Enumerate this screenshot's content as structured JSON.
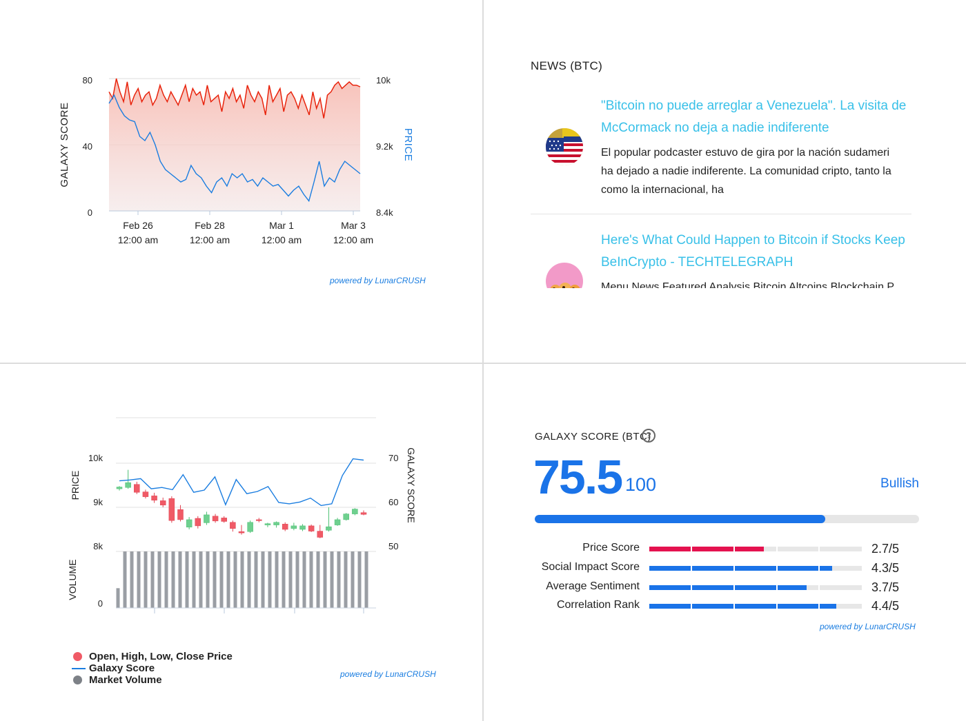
{
  "colors": {
    "galaxy_red": "#e8230c",
    "price_blue": "#1a7de0",
    "news_title": "#38c0e8",
    "score_blue": "#1a73e8",
    "price_score_red": "#e4124f",
    "candle_up": "#6fd08f",
    "candle_down": "#f05a66",
    "volume_gray": "#9a9ea4"
  },
  "top_chart": {
    "powered_by": "powered by LunarCRUSH",
    "chart_data": {
      "type": "line",
      "left_axis_label": "GALAXY SCORE",
      "right_axis_label": "PRICE",
      "left_ticks": [
        "80",
        "40",
        "0"
      ],
      "right_ticks": [
        "10k",
        "9.2k",
        "8.4k"
      ],
      "ylim_left": [
        0,
        80
      ],
      "ylim_right": [
        8400,
        10000
      ],
      "x_ticks": [
        {
          "line1": "Feb 26",
          "line2": "12:00 am",
          "t": 0.13
        },
        {
          "line1": "Feb 28",
          "line2": "12:00 am",
          "t": 0.42
        },
        {
          "line1": "Mar 1",
          "line2": "12:00 am",
          "t": 0.71
        },
        {
          "line1": "Mar 3",
          "line2": "12:00 am",
          "t": 1.0
        }
      ],
      "series": [
        {
          "name": "Galaxy Score",
          "axis": "left",
          "values": [
            72,
            68,
            80,
            72,
            66,
            78,
            64,
            70,
            74,
            66,
            70,
            72,
            64,
            68,
            76,
            70,
            66,
            72,
            68,
            64,
            70,
            76,
            66,
            74,
            70,
            72,
            64,
            76,
            66,
            68,
            70,
            60,
            72,
            68,
            74,
            66,
            70,
            62,
            76,
            70,
            66,
            72,
            68,
            58,
            76,
            66,
            70,
            74,
            60,
            70,
            72,
            68,
            62,
            70,
            64,
            58,
            72,
            62,
            68,
            56,
            70,
            72,
            76,
            78,
            74,
            76,
            78,
            76,
            76,
            75
          ]
        },
        {
          "name": "Price",
          "axis": "right",
          "values": [
            9700,
            9800,
            9650,
            9550,
            9500,
            9480,
            9300,
            9250,
            9350,
            9200,
            9000,
            8900,
            8850,
            8800,
            8750,
            8780,
            8950,
            8850,
            8800,
            8700,
            8620,
            8750,
            8800,
            8700,
            8850,
            8800,
            8850,
            8750,
            8780,
            8700,
            8800,
            8750,
            8700,
            8720,
            8650,
            8580,
            8650,
            8700,
            8600,
            8520,
            8750,
            9000,
            8700,
            8800,
            8750,
            8900,
            9000,
            8950,
            8900,
            8850
          ]
        }
      ]
    }
  },
  "news": {
    "heading": "NEWS (BTC)",
    "items": [
      {
        "title_line1": "\"Bitcoin no puede arreglar a Venezuela\". La visita de",
        "title_line2": "McCormack no deja a nadie indiferente",
        "body_line1": "El popular podcaster estuvo de gira por la nación sudameri",
        "body_line2": "ha dejado a nadie indiferente. La comunidad cripto, tanto la",
        "body_line3": "como la internacional, ha"
      },
      {
        "title_line1": "Here's What Could Happen to Bitcoin if Stocks Keep",
        "title_line2": "BeInCrypto - TECHTELEGRAPH",
        "body_line1": "Menu News Featured Analysis Bitcoin Altcoins Blockchain P"
      }
    ]
  },
  "bottom_chart": {
    "powered_by": "powered by LunarCRUSH",
    "legend": [
      {
        "label": "Open, High, Low, Close Price",
        "color": "#f05a66",
        "shape": "dot"
      },
      {
        "label": "Galaxy Score",
        "color": "#1a7de0",
        "shape": "line"
      },
      {
        "label": "Market Volume",
        "color": "#7d8187",
        "shape": "dot"
      }
    ],
    "chart_data": {
      "type": "candlestick",
      "price_axis_label": "PRICE",
      "galaxy_axis_label": "GALAXY SCORE",
      "volume_axis_label": "VOLUME",
      "price_ticks": [
        "10k",
        "9k",
        "8k"
      ],
      "galaxy_ticks": [
        "70",
        "60",
        "50"
      ],
      "volume_ticks": [
        "0"
      ],
      "price_ylim": [
        8000,
        10000
      ],
      "galaxy_ylim": [
        50,
        70
      ],
      "candles": [
        {
          "o": 9420,
          "h": 9480,
          "l": 9380,
          "c": 9460
        },
        {
          "o": 9450,
          "h": 9850,
          "l": 9420,
          "c": 9560
        },
        {
          "o": 9520,
          "h": 9580,
          "l": 9300,
          "c": 9340
        },
        {
          "o": 9350,
          "h": 9400,
          "l": 9200,
          "c": 9240
        },
        {
          "o": 9260,
          "h": 9330,
          "l": 9100,
          "c": 9160
        },
        {
          "o": 9150,
          "h": 9220,
          "l": 9000,
          "c": 9050
        },
        {
          "o": 9200,
          "h": 9250,
          "l": 8650,
          "c": 8700
        },
        {
          "o": 8950,
          "h": 9050,
          "l": 8680,
          "c": 8720
        },
        {
          "o": 8550,
          "h": 8780,
          "l": 8500,
          "c": 8720
        },
        {
          "o": 8750,
          "h": 8800,
          "l": 8520,
          "c": 8580
        },
        {
          "o": 8650,
          "h": 8900,
          "l": 8600,
          "c": 8830
        },
        {
          "o": 8800,
          "h": 8850,
          "l": 8650,
          "c": 8690
        },
        {
          "o": 8760,
          "h": 8800,
          "l": 8650,
          "c": 8680
        },
        {
          "o": 8660,
          "h": 8700,
          "l": 8450,
          "c": 8520
        },
        {
          "o": 8450,
          "h": 8600,
          "l": 8380,
          "c": 8420
        },
        {
          "o": 8450,
          "h": 8700,
          "l": 8420,
          "c": 8660
        },
        {
          "o": 8720,
          "h": 8760,
          "l": 8660,
          "c": 8700
        },
        {
          "o": 8600,
          "h": 8650,
          "l": 8550,
          "c": 8630
        },
        {
          "o": 8600,
          "h": 8680,
          "l": 8540,
          "c": 8660
        },
        {
          "o": 8620,
          "h": 8660,
          "l": 8460,
          "c": 8500
        },
        {
          "o": 8520,
          "h": 8650,
          "l": 8480,
          "c": 8580
        },
        {
          "o": 8500,
          "h": 8620,
          "l": 8460,
          "c": 8580
        },
        {
          "o": 8580,
          "h": 8610,
          "l": 8440,
          "c": 8460
        },
        {
          "o": 8460,
          "h": 8600,
          "l": 8300,
          "c": 8320
        },
        {
          "o": 8480,
          "h": 9000,
          "l": 8450,
          "c": 8560
        },
        {
          "o": 8600,
          "h": 8760,
          "l": 8580,
          "c": 8720
        },
        {
          "o": 8720,
          "h": 8870,
          "l": 8700,
          "c": 8850
        },
        {
          "o": 8850,
          "h": 8980,
          "l": 8820,
          "c": 8960
        },
        {
          "o": 8880,
          "h": 8930,
          "l": 8820,
          "c": 8840
        }
      ],
      "galaxy_score": [
        66.0,
        66.2,
        66.5,
        64.2,
        64.5,
        64.0,
        67.4,
        63.4,
        63.9,
        66.9,
        60.6,
        66.3,
        63.1,
        63.6,
        64.7,
        61.1,
        60.8,
        61.2,
        62.1,
        60.4,
        60.8,
        67.2,
        71.0,
        70.7
      ],
      "volume": [
        0.35,
        1,
        1,
        1,
        1,
        1,
        1,
        1,
        1,
        1,
        1,
        1,
        1,
        1,
        1,
        1,
        1,
        1,
        1,
        1,
        1,
        1,
        1,
        1,
        1,
        1,
        1,
        1,
        1,
        1,
        1,
        1,
        1,
        1,
        1,
        1,
        1
      ]
    }
  },
  "galaxy_score": {
    "heading": "GALAXY SCORE (BTC)",
    "help_icon": "question-circle-icon",
    "help_glyph": "?",
    "value": "75.5",
    "out_of": "/ 100",
    "progress": 0.755,
    "sentiment": "Bullish",
    "metrics": [
      {
        "label": "Price Score",
        "value": "2.7/5",
        "fraction": 0.54,
        "color": "#e4124f"
      },
      {
        "label": "Social Impact Score",
        "value": "4.3/5",
        "fraction": 0.86,
        "color": "#1a73e8"
      },
      {
        "label": "Average Sentiment",
        "value": "3.7/5",
        "fraction": 0.74,
        "color": "#1a73e8"
      },
      {
        "label": "Correlation Rank",
        "value": "4.4/5",
        "fraction": 0.88,
        "color": "#1a73e8"
      }
    ],
    "powered_by": "powered by LunarCRUSH"
  }
}
